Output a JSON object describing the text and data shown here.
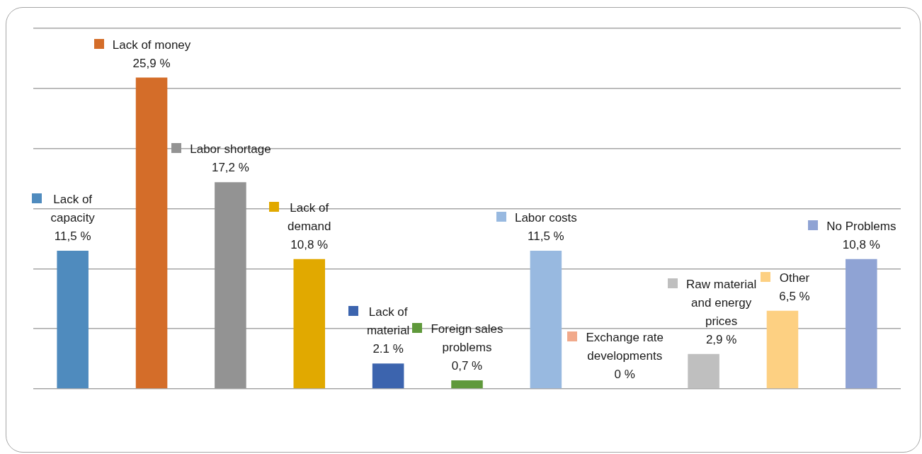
{
  "chart_data": {
    "type": "bar",
    "categories": [
      "Lack of capacity",
      "Lack of money",
      "Labor shortage",
      "Lack of demand",
      "Lack of material",
      "Foreign sales problems",
      "Labor costs",
      "Exchange rate developments",
      "Raw material and energy prices",
      "Other",
      "No Problems"
    ],
    "values": [
      11.5,
      25.9,
      17.2,
      10.8,
      2.1,
      0.7,
      11.5,
      0,
      2.9,
      6.5,
      10.8
    ],
    "colors": [
      "#4f8bbe",
      "#d46d29",
      "#939393",
      "#e1a900",
      "#3c64ae",
      "#5f993b",
      "#98b9e0",
      "#f1a98b",
      "#bfbfbf",
      "#fdd082",
      "#8fa3d4"
    ],
    "value_labels": [
      "11,5 %",
      "25,9 %",
      "17,2 %",
      "10,8 %",
      "2.1 %",
      "0,7 %",
      "11,5 %",
      "0 %",
      "2,9 %",
      "6,5 %",
      "10,8 %"
    ],
    "ylim": [
      0,
      30
    ],
    "yticks": [
      {
        "value": 0,
        "label": null
      },
      {
        "value": 5,
        "label": null
      },
      {
        "value": 10,
        "label": null
      },
      {
        "value": 15,
        "label": null
      },
      {
        "value": 20,
        "label": null
      },
      {
        "value": 25,
        "label": null
      },
      {
        "value": 30,
        "label": null
      }
    ],
    "grid": "y",
    "tick_labels": false
  }
}
